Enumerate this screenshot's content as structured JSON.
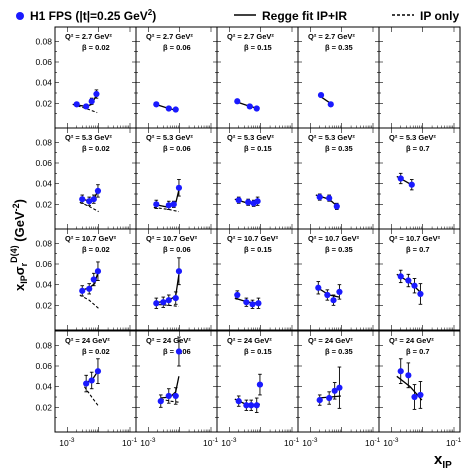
{
  "chart_data": {
    "type": "scatter",
    "legend": {
      "placement": "top",
      "data_label": "H1 FPS (|t|=0.25 GeV",
      "data_label_sup": "2",
      "data_label_end": ")",
      "fit_label": "Regge fit IP+IR",
      "ip_label": "IP only"
    },
    "ylabel": {
      "main": "x",
      "sub1": "IP",
      "sigma": "σ",
      "sub2": "r",
      "sup": "D(4)",
      "unit_open": " (GeV",
      "unit_sup": "-2",
      "unit_close": ")"
    },
    "xlabel": {
      "main": "x",
      "sub": "IP"
    },
    "x_scale": "log",
    "xlim": [
      0.00063,
      0.1
    ],
    "ylim": [
      0,
      0.09
    ],
    "y_ticks": [
      "0.02",
      "0.04",
      "0.06",
      "0.08"
    ],
    "x_ticks": [
      {
        "base": "10",
        "exp": "-3"
      },
      {
        "base": "10",
        "exp": "-1"
      }
    ],
    "colors": {
      "points": "#1a1aff",
      "lines": "#000000"
    },
    "panels": [
      {
        "q2": "Q² = 2.7 GeV²",
        "beta": "β = 0.02",
        "points": [
          [
            0.002,
            0.019,
            0.002
          ],
          [
            0.004,
            0.017,
            0.002
          ],
          [
            0.006,
            0.022,
            0.003
          ],
          [
            0.0085,
            0.029,
            0.004
          ]
        ],
        "fit": [
          [
            0.0015,
            0.019
          ],
          [
            0.004,
            0.017
          ],
          [
            0.006,
            0.019
          ],
          [
            0.0085,
            0.028
          ]
        ],
        "ip": [
          [
            0.0015,
            0.019
          ],
          [
            0.004,
            0.015
          ],
          [
            0.009,
            0.011
          ]
        ]
      },
      {
        "q2": "Q² = 2.7 GeV²",
        "beta": "β = 0.06",
        "points": [
          [
            0.0018,
            0.019,
            0.002
          ],
          [
            0.0045,
            0.015,
            0.002
          ],
          [
            0.0075,
            0.014,
            0.002
          ]
        ],
        "fit": [
          [
            0.0015,
            0.0195
          ],
          [
            0.0045,
            0.015
          ],
          [
            0.0085,
            0.013
          ]
        ],
        "ip": []
      },
      {
        "q2": "Q² = 2.7 GeV²",
        "beta": "β = 0.15",
        "points": [
          [
            0.0018,
            0.022,
            0.002
          ],
          [
            0.0045,
            0.017,
            0.002
          ],
          [
            0.0075,
            0.015,
            0.002
          ]
        ],
        "fit": [
          [
            0.0015,
            0.022
          ],
          [
            0.0045,
            0.017
          ],
          [
            0.0085,
            0.015
          ]
        ],
        "ip": []
      },
      {
        "q2": "Q² = 2.7 GeV²",
        "beta": "β = 0.35",
        "points": [
          [
            0.0022,
            0.028,
            0.002
          ],
          [
            0.0045,
            0.019,
            0.002
          ]
        ],
        "fit": [
          [
            0.0018,
            0.028
          ],
          [
            0.005,
            0.019
          ]
        ],
        "ip": []
      },
      {
        "q2": "",
        "beta": "",
        "points": [],
        "fit": [],
        "ip": []
      },
      {
        "q2": "Q² = 5.3 GeV²",
        "beta": "β = 0.02",
        "points": [
          [
            0.003,
            0.025,
            0.004
          ],
          [
            0.005,
            0.023,
            0.004
          ],
          [
            0.007,
            0.025,
            0.004
          ],
          [
            0.0095,
            0.033,
            0.006
          ]
        ],
        "fit": [
          [
            0.0025,
            0.026
          ],
          [
            0.005,
            0.023
          ],
          [
            0.007,
            0.025
          ],
          [
            0.0095,
            0.033
          ]
        ],
        "ip": [
          [
            0.0025,
            0.022
          ],
          [
            0.005,
            0.018
          ],
          [
            0.01,
            0.013
          ]
        ]
      },
      {
        "q2": "Q² = 5.3 GeV²",
        "beta": "β = 0.06",
        "points": [
          [
            0.0018,
            0.02,
            0.004
          ],
          [
            0.0045,
            0.019,
            0.004
          ],
          [
            0.0065,
            0.02,
            0.003
          ],
          [
            0.0095,
            0.036,
            0.008
          ]
        ],
        "fit": [
          [
            0.0015,
            0.02
          ],
          [
            0.0045,
            0.017
          ],
          [
            0.0075,
            0.021
          ],
          [
            0.0095,
            0.034
          ]
        ],
        "ip": [
          [
            0.0015,
            0.017
          ],
          [
            0.0045,
            0.015
          ],
          [
            0.0095,
            0.013
          ]
        ]
      },
      {
        "q2": "Q² = 5.3 GeV²",
        "beta": "β = 0.15",
        "points": [
          [
            0.002,
            0.024,
            0.003
          ],
          [
            0.004,
            0.022,
            0.003
          ],
          [
            0.006,
            0.021,
            0.003
          ],
          [
            0.008,
            0.023,
            0.004
          ]
        ],
        "fit": [
          [
            0.0015,
            0.025
          ],
          [
            0.004,
            0.021
          ],
          [
            0.0085,
            0.021
          ]
        ],
        "ip": []
      },
      {
        "q2": "Q² = 5.3 GeV²",
        "beta": "β = 0.35",
        "points": [
          [
            0.002,
            0.027,
            0.003
          ],
          [
            0.004,
            0.026,
            0.003
          ],
          [
            0.007,
            0.018,
            0.003
          ]
        ],
        "fit": [
          [
            0.0015,
            0.029
          ],
          [
            0.004,
            0.025
          ],
          [
            0.008,
            0.017
          ]
        ],
        "ip": []
      },
      {
        "q2": "Q² = 5.3 GeV²",
        "beta": "β = 0.7",
        "points": [
          [
            0.002,
            0.045,
            0.005
          ],
          [
            0.0045,
            0.039,
            0.005
          ]
        ],
        "fit": [
          [
            0.0015,
            0.047
          ],
          [
            0.005,
            0.038
          ]
        ],
        "ip": []
      },
      {
        "q2": "Q² = 10.7 GeV²",
        "beta": "β = 0.02",
        "points": [
          [
            0.003,
            0.034,
            0.005
          ],
          [
            0.005,
            0.036,
            0.005
          ],
          [
            0.007,
            0.045,
            0.006
          ],
          [
            0.0095,
            0.053,
            0.009
          ]
        ],
        "fit": [
          [
            0.0025,
            0.034
          ],
          [
            0.005,
            0.037
          ],
          [
            0.0075,
            0.041
          ],
          [
            0.0095,
            0.052
          ]
        ],
        "ip": [
          [
            0.0025,
            0.03
          ],
          [
            0.005,
            0.025
          ],
          [
            0.01,
            0.017
          ]
        ]
      },
      {
        "q2": "Q² = 10.7 GeV²",
        "beta": "β = 0.06",
        "points": [
          [
            0.0018,
            0.022,
            0.005
          ],
          [
            0.003,
            0.023,
            0.005
          ],
          [
            0.0045,
            0.025,
            0.005
          ],
          [
            0.0075,
            0.027,
            0.006
          ],
          [
            0.0095,
            0.053,
            0.013
          ]
        ],
        "fit": [
          [
            0.0015,
            0.022
          ],
          [
            0.0045,
            0.025
          ],
          [
            0.0075,
            0.029
          ],
          [
            0.0095,
            0.05
          ]
        ],
        "ip": [
          [
            0.0015,
            0.021
          ],
          [
            0.0045,
            0.02
          ],
          [
            0.0095,
            0.019
          ]
        ]
      },
      {
        "q2": "Q² = 10.7 GeV²",
        "beta": "β = 0.15",
        "points": [
          [
            0.0018,
            0.03,
            0.004
          ],
          [
            0.0035,
            0.023,
            0.004
          ],
          [
            0.0055,
            0.021,
            0.004
          ],
          [
            0.0085,
            0.022,
            0.005
          ]
        ],
        "fit": [
          [
            0.0015,
            0.027
          ],
          [
            0.004,
            0.023
          ],
          [
            0.0085,
            0.022
          ]
        ],
        "ip": []
      },
      {
        "q2": "Q² = 10.7 GeV²",
        "beta": "β = 0.35",
        "points": [
          [
            0.0018,
            0.037,
            0.006
          ],
          [
            0.0035,
            0.03,
            0.005
          ],
          [
            0.0055,
            0.025,
            0.005
          ],
          [
            0.0085,
            0.033,
            0.007
          ]
        ],
        "fit": [
          [
            0.0015,
            0.038
          ],
          [
            0.004,
            0.03
          ],
          [
            0.0085,
            0.028
          ]
        ],
        "ip": []
      },
      {
        "q2": "Q² = 10.7 GeV²",
        "beta": "β = 0.7",
        "points": [
          [
            0.002,
            0.048,
            0.006
          ],
          [
            0.0035,
            0.044,
            0.006
          ],
          [
            0.0055,
            0.039,
            0.007
          ],
          [
            0.0085,
            0.031,
            0.01
          ]
        ],
        "fit": [
          [
            0.0015,
            0.05
          ],
          [
            0.004,
            0.042
          ],
          [
            0.009,
            0.032
          ]
        ],
        "ip": []
      },
      {
        "q2": "Q² = 24 GeV²",
        "beta": "β = 0.02",
        "points": [
          [
            0.004,
            0.043,
            0.008
          ],
          [
            0.006,
            0.046,
            0.008
          ],
          [
            0.0095,
            0.055,
            0.012
          ]
        ],
        "fit": [
          [
            0.0035,
            0.044
          ],
          [
            0.006,
            0.046
          ],
          [
            0.0095,
            0.055
          ]
        ],
        "ip": [
          [
            0.0035,
            0.04
          ],
          [
            0.006,
            0.03
          ],
          [
            0.0095,
            0.022
          ]
        ]
      },
      {
        "q2": "Q² = 24 GeV²",
        "beta": "β = 0.06",
        "points": [
          [
            0.0025,
            0.026,
            0.006
          ],
          [
            0.0045,
            0.031,
            0.007
          ],
          [
            0.0075,
            0.031,
            0.008
          ],
          [
            0.0095,
            0.074,
            0.014
          ]
        ],
        "fit": [
          [
            0.0025,
            0.029
          ],
          [
            0.005,
            0.03
          ],
          [
            0.0075,
            0.035
          ],
          [
            0.0095,
            0.05
          ]
        ],
        "ip": [
          [
            0.0025,
            0.028
          ],
          [
            0.005,
            0.026
          ],
          [
            0.0095,
            0.025
          ]
        ]
      },
      {
        "q2": "Q² = 24 GeV²",
        "beta": "β = 0.15",
        "points": [
          [
            0.002,
            0.026,
            0.005
          ],
          [
            0.0035,
            0.022,
            0.005
          ],
          [
            0.005,
            0.022,
            0.005
          ],
          [
            0.0075,
            0.022,
            0.007
          ],
          [
            0.0095,
            0.042,
            0.01
          ]
        ],
        "fit": [
          [
            0.0015,
            0.028
          ],
          [
            0.004,
            0.022
          ],
          [
            0.0095,
            0.023
          ]
        ],
        "ip": []
      },
      {
        "q2": "Q² = 24 GeV²",
        "beta": "β = 0.35",
        "points": [
          [
            0.002,
            0.027,
            0.005
          ],
          [
            0.004,
            0.029,
            0.006
          ],
          [
            0.006,
            0.036,
            0.008
          ],
          [
            0.0085,
            0.039,
            0.02
          ]
        ],
        "fit": [
          [
            0.0018,
            0.029
          ],
          [
            0.0045,
            0.03
          ],
          [
            0.0095,
            0.031
          ]
        ],
        "ip": []
      },
      {
        "q2": "Q² = 24 GeV²",
        "beta": "β = 0.7",
        "points": [
          [
            0.002,
            0.055,
            0.012
          ],
          [
            0.0035,
            0.051,
            0.012
          ],
          [
            0.0055,
            0.03,
            0.012
          ],
          [
            0.0085,
            0.032,
            0.013
          ]
        ],
        "fit": [
          [
            0.0015,
            0.05
          ],
          [
            0.004,
            0.04
          ],
          [
            0.0095,
            0.027
          ]
        ],
        "ip": []
      }
    ]
  }
}
